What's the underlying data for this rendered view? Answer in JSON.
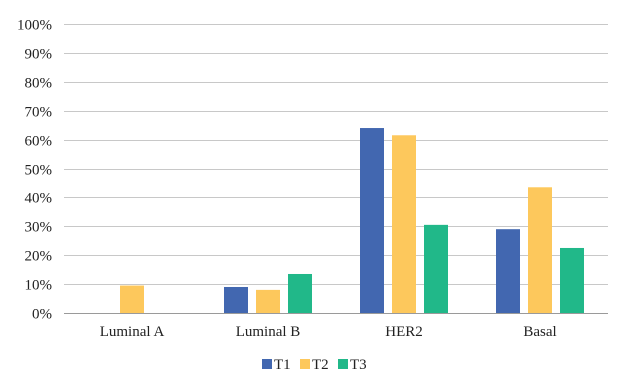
{
  "chart_data": {
    "type": "bar",
    "title": "",
    "xlabel": "",
    "ylabel": "",
    "categories": [
      "Luminal A",
      "Luminal B",
      "HER2",
      "Basal"
    ],
    "series": [
      {
        "name": "T1",
        "color": "#4267b0",
        "values": [
          0,
          9,
          64,
          29
        ]
      },
      {
        "name": "T2",
        "color": "#fdc85c",
        "values": [
          9.5,
          8,
          61.5,
          43.5
        ]
      },
      {
        "name": "T3",
        "color": "#21b889",
        "values": [
          0,
          13.5,
          30.5,
          22.5
        ]
      }
    ],
    "ylim": [
      0,
      100
    ],
    "yticks": [
      0,
      10,
      20,
      30,
      40,
      50,
      60,
      70,
      80,
      90,
      100
    ],
    "yticklabels": [
      "0%",
      "10%",
      "20%",
      "30%",
      "40%",
      "50%",
      "60%",
      "70%",
      "80%",
      "90%",
      "100%"
    ],
    "grid": true,
    "legend_position": "bottom"
  }
}
